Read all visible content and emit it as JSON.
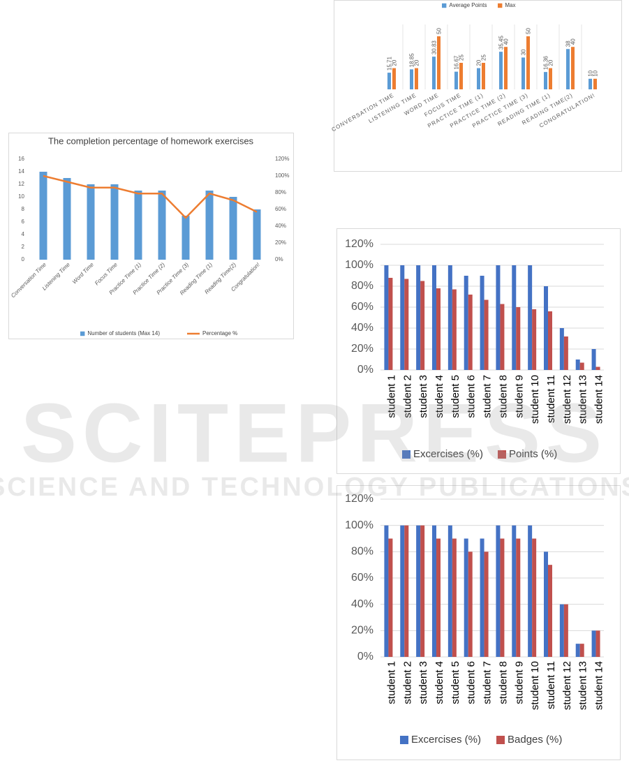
{
  "chart_data": [
    {
      "type": "bar",
      "title": "The completion percentage of homework exercises",
      "categories": [
        "Conversation Time",
        "Listening Time",
        "Word Time",
        "Focus Time",
        "Practice Time (1)",
        "Practice Time (2)",
        "Practice Time (3)",
        "Reading Time (1)",
        "Reading Time(2)",
        "Congratulation!"
      ],
      "series": [
        {
          "name": "Number of students (Max 14)",
          "color": "#5b9bd5",
          "values": [
            14,
            13,
            12,
            12,
            11,
            11,
            7,
            11,
            10,
            8
          ]
        },
        {
          "name": "Percentage %",
          "color": "#ed7d31",
          "type": "line",
          "axis": "y2",
          "values": [
            100,
            93,
            86,
            86,
            79,
            79,
            50,
            79,
            71,
            57
          ]
        }
      ],
      "ylim": [
        0,
        16
      ],
      "yticks": [
        0,
        2,
        4,
        6,
        8,
        10,
        12,
        14,
        16
      ],
      "y2lim": [
        0,
        120
      ],
      "y2ticks": [
        {
          "value": 0,
          "label": "0%"
        },
        {
          "value": 20,
          "label": "20%"
        },
        {
          "value": 40,
          "label": "40%"
        },
        {
          "value": 60,
          "label": "60%"
        },
        {
          "value": 80,
          "label": "80%"
        },
        {
          "value": 100,
          "label": "100%"
        },
        {
          "value": 120,
          "label": "120%"
        }
      ],
      "grid": false,
      "legend": "bottom"
    },
    {
      "type": "bar",
      "categories": [
        "CONVERSATION TIME",
        "LISTENING TIME",
        "WORD TIME",
        "FOCUS TIME",
        "PRACTICE TIME (1)",
        "PRACTICE TIME (2)",
        "PRACTICE TIME (3)",
        "READING TIME (1)",
        "READING TIME(2)",
        "CONGRATULATION!"
      ],
      "series": [
        {
          "name": "Average Points",
          "color": "#5b9bd5",
          "values": [
            15.71,
            18.85,
            30.83,
            16.67,
            20,
            35.45,
            30,
            16.36,
            38,
            10
          ]
        },
        {
          "name": "Max",
          "color": "#ed7d31",
          "values": [
            20,
            20,
            50,
            25,
            25,
            40,
            50,
            20,
            40,
            10
          ]
        }
      ],
      "show_values": true,
      "grid": false,
      "legend": "top"
    },
    {
      "type": "bar",
      "categories": [
        "student 1",
        "student 2",
        "student 3",
        "student 4",
        "student 5",
        "student 6",
        "student 7",
        "student 8",
        "student 9",
        "student 10",
        "student 11",
        "student 12",
        "student 13",
        "student 14"
      ],
      "series": [
        {
          "name": "Excercises (%)",
          "color": "#4472c4",
          "values": [
            100,
            100,
            100,
            100,
            100,
            90,
            90,
            100,
            100,
            100,
            80,
            40,
            10,
            20
          ]
        },
        {
          "name": "Points (%)",
          "color": "#c0504d",
          "values": [
            88,
            87,
            85,
            78,
            77,
            72,
            67,
            63,
            60,
            58,
            56,
            32,
            7,
            3
          ]
        }
      ],
      "ylim": [
        0,
        120
      ],
      "yticks": [
        {
          "value": 0,
          "label": "0%"
        },
        {
          "value": 20,
          "label": "20%"
        },
        {
          "value": 40,
          "label": "40%"
        },
        {
          "value": 60,
          "label": "60%"
        },
        {
          "value": 80,
          "label": "80%"
        },
        {
          "value": 100,
          "label": "100%"
        },
        {
          "value": 120,
          "label": "120%"
        }
      ],
      "grid": true,
      "legend": "bottom"
    },
    {
      "type": "bar",
      "categories": [
        "student 1",
        "student 2",
        "student 3",
        "student 4",
        "student 5",
        "student 6",
        "student 7",
        "student 8",
        "student 9",
        "student 10",
        "student 11",
        "student 12",
        "student 13",
        "student 14"
      ],
      "series": [
        {
          "name": "Excercises (%)",
          "color": "#4472c4",
          "values": [
            100,
            100,
            100,
            100,
            100,
            90,
            90,
            100,
            100,
            100,
            80,
            40,
            10,
            20
          ]
        },
        {
          "name": "Badges (%)",
          "color": "#c0504d",
          "values": [
            90,
            100,
            100,
            90,
            90,
            80,
            80,
            90,
            90,
            90,
            70,
            40,
            10,
            20
          ]
        }
      ],
      "ylim": [
        0,
        120
      ],
      "yticks": [
        {
          "value": 0,
          "label": "0%"
        },
        {
          "value": 20,
          "label": "20%"
        },
        {
          "value": 40,
          "label": "40%"
        },
        {
          "value": 60,
          "label": "60%"
        },
        {
          "value": 80,
          "label": "80%"
        },
        {
          "value": 100,
          "label": "100%"
        },
        {
          "value": 120,
          "label": "120%"
        }
      ],
      "grid": true,
      "legend": "bottom"
    }
  ],
  "watermark": {
    "title": "SCITEPRESS",
    "subtitle": "SCIENCE AND TECHNOLOGY PUBLICATIONS"
  }
}
